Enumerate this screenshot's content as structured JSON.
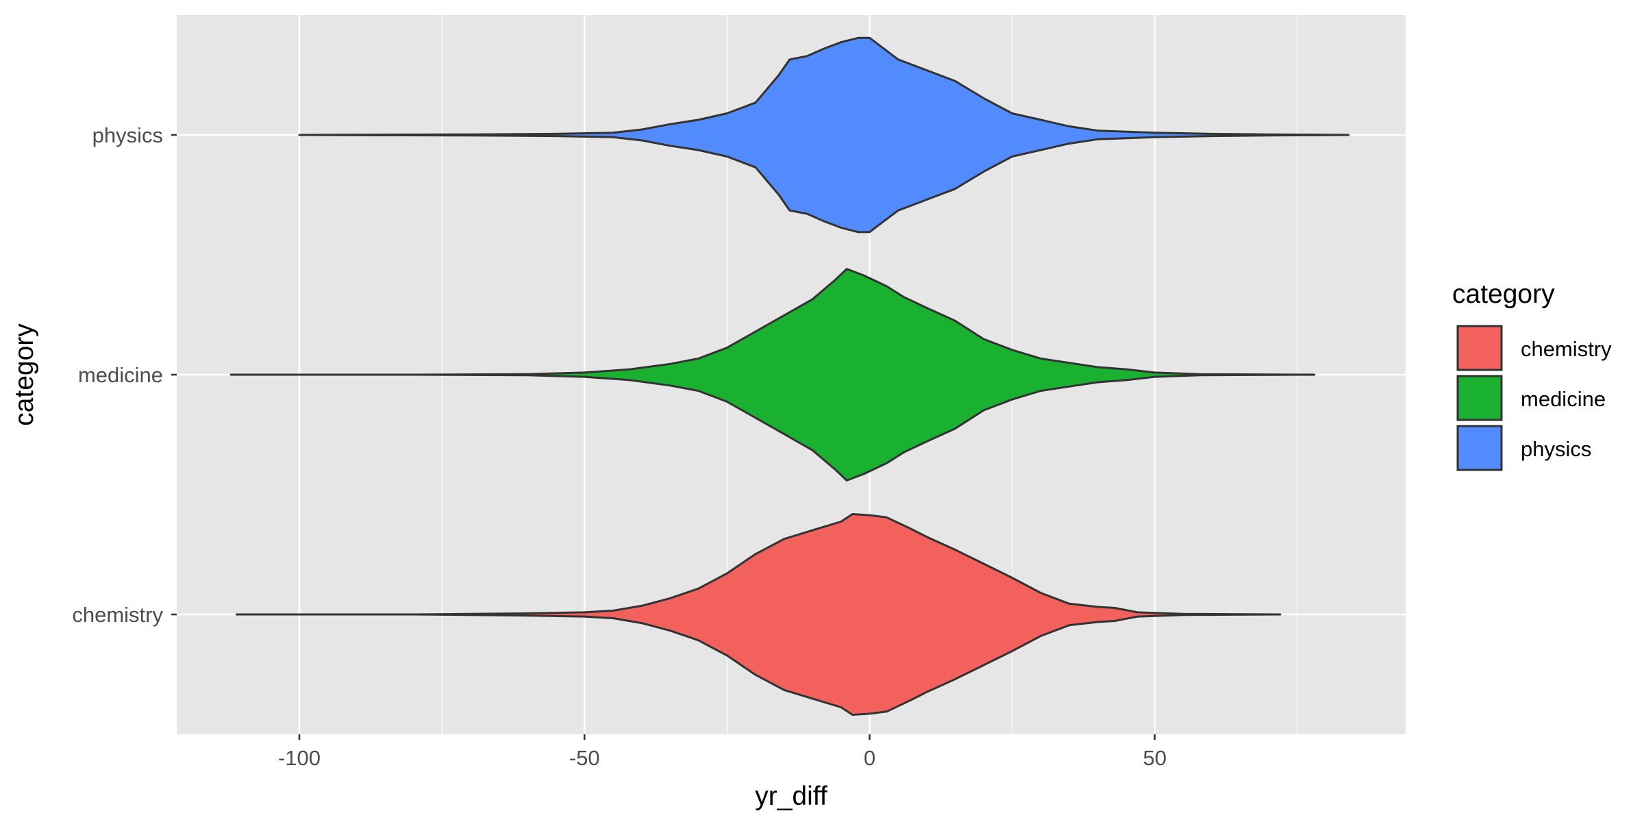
{
  "chart_data": {
    "type": "violin",
    "orientation": "horizontal",
    "xlabel": "yr_diff",
    "ylabel": "category",
    "xlim": [
      -121.5,
      94
    ],
    "xticks": [
      -100,
      -50,
      0,
      50
    ],
    "xtick_labels": [
      "-100",
      "-50",
      "0",
      "50"
    ],
    "x_minor_grid": [
      -125,
      -75,
      -25,
      25,
      75
    ],
    "categories": [
      "chemistry",
      "medicine",
      "physics"
    ],
    "grid": true,
    "background": "#e6e6e6",
    "legend": {
      "title": "category",
      "placement": "right",
      "entries": [
        "chemistry",
        "medicine",
        "physics"
      ]
    },
    "series": [
      {
        "name": "chemistry",
        "color": "#f3615d",
        "range": [
          -111,
          72
        ],
        "density": [
          [
            -111,
            0.0
          ],
          [
            -80,
            0.0
          ],
          [
            -60,
            0.01
          ],
          [
            -50,
            0.02
          ],
          [
            -45,
            0.035
          ],
          [
            -40,
            0.08
          ],
          [
            -35,
            0.15
          ],
          [
            -30,
            0.24
          ],
          [
            -25,
            0.38
          ],
          [
            -20,
            0.56
          ],
          [
            -15,
            0.7
          ],
          [
            -10,
            0.78
          ],
          [
            -5,
            0.86
          ],
          [
            -3,
            0.93
          ],
          [
            0,
            0.92
          ],
          [
            3,
            0.9
          ],
          [
            7,
            0.8
          ],
          [
            10,
            0.72
          ],
          [
            15,
            0.6
          ],
          [
            20,
            0.47
          ],
          [
            25,
            0.34
          ],
          [
            30,
            0.2
          ],
          [
            35,
            0.1
          ],
          [
            40,
            0.07
          ],
          [
            43,
            0.06
          ],
          [
            47,
            0.02
          ],
          [
            55,
            0.005
          ],
          [
            72,
            0.0
          ]
        ]
      },
      {
        "name": "medicine",
        "color": "#1ab130",
        "range": [
          -112,
          78
        ],
        "density": [
          [
            -112,
            0.0
          ],
          [
            -80,
            0.0
          ],
          [
            -60,
            0.005
          ],
          [
            -50,
            0.02
          ],
          [
            -42,
            0.05
          ],
          [
            -35,
            0.1
          ],
          [
            -30,
            0.15
          ],
          [
            -25,
            0.25
          ],
          [
            -20,
            0.4
          ],
          [
            -15,
            0.55
          ],
          [
            -10,
            0.7
          ],
          [
            -6,
            0.88
          ],
          [
            -4,
            0.98
          ],
          [
            -1,
            0.92
          ],
          [
            3,
            0.82
          ],
          [
            6,
            0.72
          ],
          [
            10,
            0.62
          ],
          [
            15,
            0.5
          ],
          [
            20,
            0.33
          ],
          [
            25,
            0.23
          ],
          [
            30,
            0.15
          ],
          [
            35,
            0.11
          ],
          [
            40,
            0.07
          ],
          [
            45,
            0.05
          ],
          [
            50,
            0.02
          ],
          [
            58,
            0.005
          ],
          [
            78,
            0.0
          ]
        ]
      },
      {
        "name": "physics",
        "color": "#528bfe",
        "range": [
          -100,
          84
        ],
        "density": [
          [
            -100,
            0.0
          ],
          [
            -70,
            0.005
          ],
          [
            -55,
            0.01
          ],
          [
            -45,
            0.02
          ],
          [
            -40,
            0.05
          ],
          [
            -35,
            0.1
          ],
          [
            -30,
            0.14
          ],
          [
            -25,
            0.2
          ],
          [
            -20,
            0.3
          ],
          [
            -16,
            0.55
          ],
          [
            -14,
            0.7
          ],
          [
            -11,
            0.73
          ],
          [
            -8,
            0.8
          ],
          [
            -5,
            0.86
          ],
          [
            -2,
            0.9
          ],
          [
            0,
            0.9
          ],
          [
            2,
            0.82
          ],
          [
            5,
            0.7
          ],
          [
            10,
            0.6
          ],
          [
            15,
            0.5
          ],
          [
            20,
            0.34
          ],
          [
            25,
            0.2
          ],
          [
            30,
            0.14
          ],
          [
            35,
            0.08
          ],
          [
            40,
            0.04
          ],
          [
            50,
            0.02
          ],
          [
            60,
            0.01
          ],
          [
            70,
            0.005
          ],
          [
            84,
            0.0
          ]
        ]
      }
    ]
  }
}
